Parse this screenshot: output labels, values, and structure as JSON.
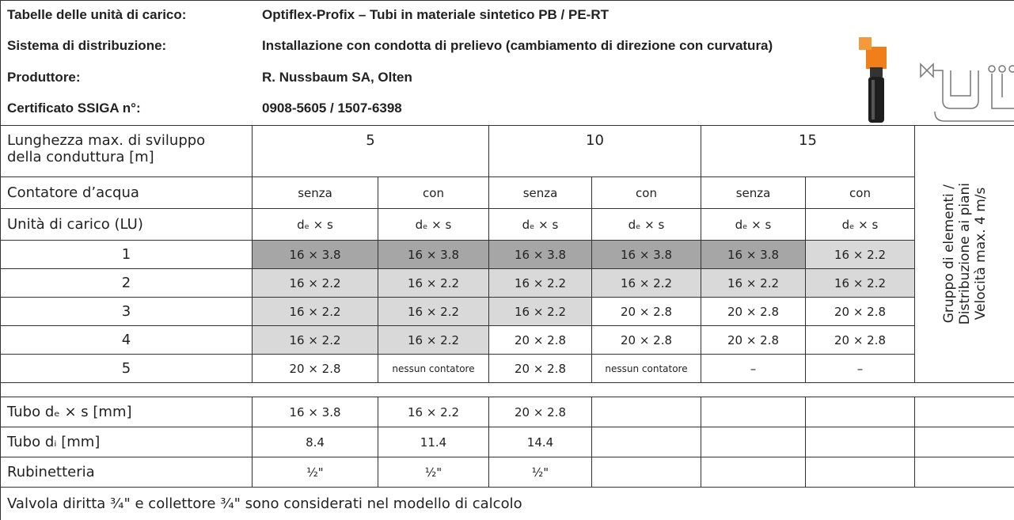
{
  "header": {
    "rows": [
      {
        "label": "Tabelle delle unità di carico:",
        "value": "Optiflex-Profix – Tubi in materiale sintetico PB / PE-RT"
      },
      {
        "label": "Sistema di distribuzione:",
        "value": "Installazione con condotta di prelievo (cambiamento di direzione con curvatura)"
      },
      {
        "label": "Produttore:",
        "value": "R. Nussbaum SA, Olten"
      },
      {
        "label": "Certificato SSIGA n°:",
        "value": "0908-5605 / 1507-6398"
      }
    ]
  },
  "table": {
    "length_label": [
      "Lunghezza max. di sviluppo",
      "della conduttura [m]"
    ],
    "lengths": [
      "5",
      "10",
      "15"
    ],
    "side_label": [
      "Gruppo di elementi /",
      "Distribuzione ai piani",
      "Velocità max. 4 m/s"
    ],
    "meter_label": "Contatore d’acqua",
    "meter": [
      "senza",
      "con",
      "senza",
      "con",
      "senza",
      "con"
    ],
    "lu_label": "Unità di carico (LU)",
    "dims": [
      "dₑ × s",
      "dₑ × s",
      "dₑ × s",
      "dₑ × s",
      "dₑ × s",
      "dₑ × s"
    ],
    "rows": [
      {
        "lu": "1",
        "cells": [
          "16 × 3.8",
          "16 × 3.8",
          "16 × 3.8",
          "16 × 3.8",
          "16 × 3.8",
          "16 × 2.2"
        ],
        "fills": [
          "#a6a6a6",
          "#a6a6a6",
          "#a6a6a6",
          "#a6a6a6",
          "#a6a6a6",
          "#d9d9d9"
        ]
      },
      {
        "lu": "2",
        "cells": [
          "16 × 2.2",
          "16 × 2.2",
          "16 × 2.2",
          "16 × 2.2",
          "16 × 2.2",
          "16 × 2.2"
        ],
        "fills": [
          "#d9d9d9",
          "#d9d9d9",
          "#d9d9d9",
          "#d9d9d9",
          "#d9d9d9",
          "#d9d9d9"
        ]
      },
      {
        "lu": "3",
        "cells": [
          "16 × 2.2",
          "16 × 2.2",
          "16 × 2.2",
          "20 × 2.8",
          "20 × 2.8",
          "20 × 2.8"
        ],
        "fills": [
          "#d9d9d9",
          "#d9d9d9",
          "#d9d9d9",
          "#ffffff",
          "#ffffff",
          "#ffffff"
        ]
      },
      {
        "lu": "4",
        "cells": [
          "16 × 2.2",
          "16 × 2.2",
          "20 × 2.8",
          "20 × 2.8",
          "20 × 2.8",
          "20 × 2.8"
        ],
        "fills": [
          "#d9d9d9",
          "#d9d9d9",
          "#ffffff",
          "#ffffff",
          "#ffffff",
          "#ffffff"
        ]
      },
      {
        "lu": "5",
        "cells": [
          "20 × 2.8",
          "nessun contatore",
          "20 × 2.8",
          "nessun contatore",
          "–",
          "–"
        ],
        "fills": [
          "#ffffff",
          "#ffffff",
          "#ffffff",
          "#ffffff",
          "#ffffff",
          "#ffffff"
        ]
      }
    ],
    "pipes": [
      {
        "label": "Tubo dₑ × s [mm]",
        "cells": [
          "16 × 3.8",
          "16 × 2.2",
          "20 × 2.8"
        ]
      },
      {
        "label": "Tubo dᵢ [mm]",
        "cells": [
          "8.4",
          "11.4",
          "14.4"
        ]
      },
      {
        "label": "Rubinetteria",
        "cells": [
          "½\"",
          "½\"",
          "½\""
        ]
      }
    ]
  },
  "footer": "Valvola diritta ¾\" e collettore ¾\" sono considerati nel modello di calcolo"
}
